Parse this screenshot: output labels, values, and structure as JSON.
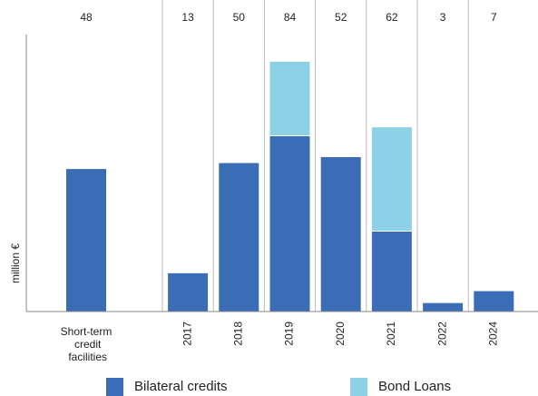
{
  "chart_data": {
    "type": "bar",
    "stacked": true,
    "categories": [
      "Short-term credit facilities",
      "2017",
      "2018",
      "2019",
      "2020",
      "2021",
      "2022",
      "2024"
    ],
    "totals": [
      48,
      13,
      50,
      84,
      52,
      62,
      3,
      7
    ],
    "series": [
      {
        "name": "Bilateral credits",
        "color": "#3a6db5",
        "values": [
          48,
          13,
          50,
          59,
          52,
          27,
          3,
          7
        ]
      },
      {
        "name": "Bond Loans",
        "color": "#8dd1e6",
        "values": [
          0,
          0,
          0,
          25,
          0,
          35,
          0,
          0
        ]
      }
    ],
    "ylabel": "million €",
    "ylim": [
      0,
      93
    ]
  }
}
